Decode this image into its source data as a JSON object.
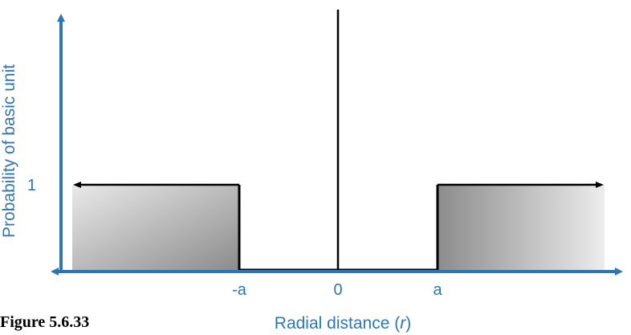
{
  "figure": {
    "y_axis_label": "Probability of basic unit",
    "x_axis_label_prefix": "Radial distance (",
    "x_axis_label_var": "r",
    "x_axis_label_suffix": ")",
    "x_ticks": [
      "-a",
      "0",
      "a"
    ],
    "y_ticks": [
      "1"
    ],
    "caption": "Figure 5.6.33"
  },
  "colors": {
    "axis": "#2e75b6",
    "curve": "#000000",
    "fill_light": "#e8e8e8",
    "fill_dark": "#8a8a8a"
  },
  "chart_data": {
    "type": "line",
    "x_ticks": [
      "-a",
      "0",
      "a"
    ],
    "y_ticks": [
      "1"
    ],
    "ylabel": "Probability of basic unit",
    "xlabel": "Radial distance (r)",
    "series": [
      {
        "points": [
          {
            "x": "-inf",
            "y": 1
          },
          {
            "x": "-a",
            "y": 1
          },
          {
            "x": "-a",
            "y": 0
          },
          {
            "x": "a",
            "y": 0
          },
          {
            "x": "a",
            "y": 1
          },
          {
            "x": "inf",
            "y": 1
          }
        ]
      }
    ]
  }
}
